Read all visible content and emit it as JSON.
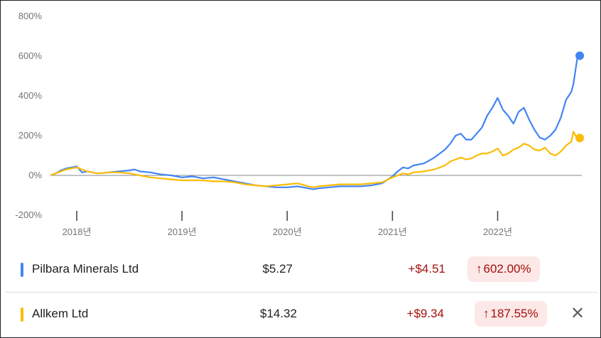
{
  "chart_data": {
    "type": "line",
    "y_tick_labels": [
      "800%",
      "600%",
      "400%",
      "200%",
      "0%",
      "-200%"
    ],
    "y_ticks": [
      800,
      600,
      400,
      200,
      0,
      -200
    ],
    "ylim": [
      -200,
      800
    ],
    "x_tick_labels": [
      "2018년",
      "2019년",
      "2020년",
      "2021년",
      "2022년"
    ],
    "x_ticks": [
      2018,
      2019,
      2020,
      2021,
      2022
    ],
    "xlim": [
      2017.75,
      2022.8
    ],
    "baseline": 0,
    "series": [
      {
        "name": "Pilbara Minerals Ltd",
        "color": "#4285f4",
        "x": [
          2017.75,
          2017.8,
          2017.85,
          2017.9,
          2017.95,
          2018.0,
          2018.05,
          2018.1,
          2018.15,
          2018.2,
          2018.3,
          2018.4,
          2018.5,
          2018.55,
          2018.6,
          2018.7,
          2018.8,
          2018.9,
          2019.0,
          2019.1,
          2019.2,
          2019.3,
          2019.4,
          2019.5,
          2019.6,
          2019.7,
          2019.8,
          2019.9,
          2020.0,
          2020.1,
          2020.2,
          2020.25,
          2020.3,
          2020.4,
          2020.5,
          2020.6,
          2020.7,
          2020.8,
          2020.9,
          2021.0,
          2021.05,
          2021.1,
          2021.15,
          2021.2,
          2021.3,
          2021.4,
          2021.5,
          2021.55,
          2021.6,
          2021.65,
          2021.7,
          2021.75,
          2021.8,
          2021.85,
          2021.9,
          2021.95,
          2022.0,
          2022.05,
          2022.1,
          2022.15,
          2022.2,
          2022.25,
          2022.3,
          2022.35,
          2022.4,
          2022.45,
          2022.5,
          2022.55,
          2022.6,
          2022.65,
          2022.7,
          2022.72,
          2022.74,
          2022.76,
          2022.78
        ],
        "values": [
          0,
          10,
          25,
          35,
          40,
          45,
          15,
          20,
          15,
          10,
          15,
          20,
          25,
          30,
          20,
          15,
          5,
          0,
          -10,
          -5,
          -15,
          -10,
          -20,
          -30,
          -40,
          -50,
          -55,
          -60,
          -60,
          -55,
          -65,
          -70,
          -65,
          -60,
          -55,
          -55,
          -55,
          -50,
          -40,
          -5,
          20,
          40,
          35,
          50,
          60,
          90,
          130,
          160,
          200,
          210,
          180,
          180,
          210,
          240,
          300,
          340,
          390,
          330,
          300,
          260,
          320,
          340,
          280,
          230,
          190,
          180,
          200,
          230,
          290,
          380,
          420,
          460,
          530,
          600,
          602
        ]
      },
      {
        "name": "Allkem Ltd",
        "color": "#fbbc04",
        "x": [
          2017.75,
          2017.8,
          2017.85,
          2017.9,
          2017.95,
          2018.0,
          2018.05,
          2018.1,
          2018.15,
          2018.2,
          2018.3,
          2018.4,
          2018.5,
          2018.55,
          2018.6,
          2018.7,
          2018.8,
          2018.9,
          2019.0,
          2019.1,
          2019.2,
          2019.3,
          2019.4,
          2019.5,
          2019.6,
          2019.7,
          2019.8,
          2019.9,
          2020.0,
          2020.1,
          2020.2,
          2020.25,
          2020.3,
          2020.4,
          2020.5,
          2020.6,
          2020.7,
          2020.8,
          2020.9,
          2021.0,
          2021.05,
          2021.1,
          2021.15,
          2021.2,
          2021.3,
          2021.4,
          2021.5,
          2021.55,
          2021.6,
          2021.65,
          2021.7,
          2021.75,
          2021.8,
          2021.85,
          2021.9,
          2021.95,
          2022.0,
          2022.05,
          2022.1,
          2022.15,
          2022.2,
          2022.25,
          2022.3,
          2022.35,
          2022.4,
          2022.45,
          2022.5,
          2022.55,
          2022.6,
          2022.65,
          2022.7,
          2022.72,
          2022.74,
          2022.76,
          2022.78
        ],
        "values": [
          0,
          10,
          20,
          30,
          35,
          40,
          30,
          20,
          15,
          10,
          15,
          15,
          10,
          5,
          0,
          -10,
          -15,
          -20,
          -25,
          -25,
          -25,
          -30,
          -30,
          -35,
          -45,
          -50,
          -55,
          -50,
          -45,
          -40,
          -55,
          -60,
          -55,
          -50,
          -45,
          -45,
          -45,
          -40,
          -35,
          -10,
          0,
          10,
          5,
          15,
          20,
          30,
          50,
          70,
          80,
          90,
          80,
          85,
          100,
          110,
          110,
          120,
          135,
          100,
          110,
          130,
          140,
          160,
          150,
          130,
          125,
          140,
          110,
          100,
          120,
          150,
          170,
          220,
          200,
          190,
          188
        ]
      }
    ]
  },
  "legend": {
    "rows": [
      {
        "name": "Pilbara Minerals Ltd",
        "price": "$5.27",
        "change": "+$4.51",
        "pct_arrow": "↑",
        "pct": "602.00%",
        "color": "#4285f4"
      },
      {
        "name": "Allkem Ltd",
        "price": "$14.32",
        "change": "+$9.34",
        "pct_arrow": "↑",
        "pct": "187.55%",
        "color": "#fbbc04",
        "close_icon": "close-icon"
      }
    ]
  }
}
